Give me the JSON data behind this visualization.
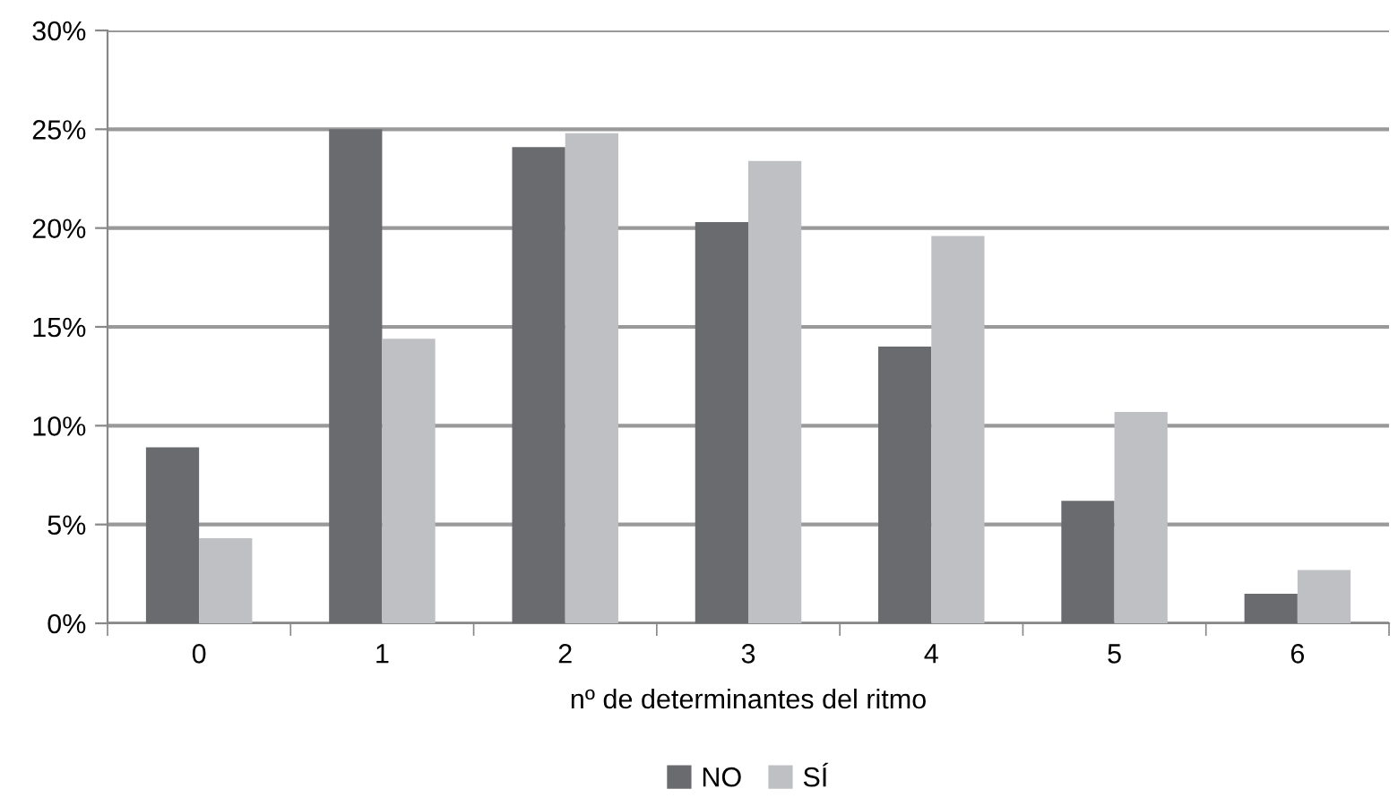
{
  "chart_data": {
    "type": "bar",
    "xlabel": "nº de determinantes del ritmo",
    "categories": [
      "0",
      "1",
      "2",
      "3",
      "4",
      "5",
      "6"
    ],
    "series": [
      {
        "name": "NO",
        "color": "#6a6b6f",
        "values": [
          8.9,
          25.0,
          24.1,
          20.3,
          14.0,
          6.2,
          1.5
        ]
      },
      {
        "name": "SÍ",
        "color": "#bfc0c3",
        "values": [
          4.3,
          14.4,
          24.8,
          23.4,
          19.6,
          10.7,
          2.7
        ]
      }
    ],
    "ylim": [
      0,
      30
    ],
    "yticks": [
      {
        "value": 0,
        "label": "0%"
      },
      {
        "value": 5,
        "label": "5%"
      },
      {
        "value": 10,
        "label": "10%"
      },
      {
        "value": 15,
        "label": "15%"
      },
      {
        "value": 20,
        "label": "20%"
      },
      {
        "value": 25,
        "label": "25%"
      },
      {
        "value": 30,
        "label": "30%"
      }
    ],
    "grid": "y",
    "legend": "bottom"
  }
}
